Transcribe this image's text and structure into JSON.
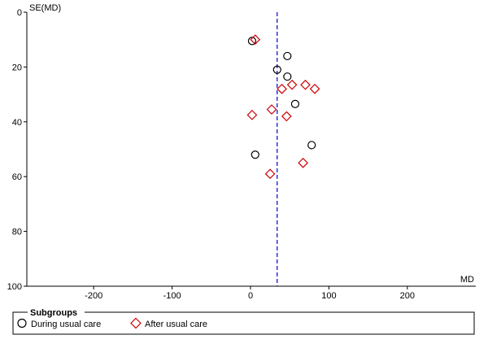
{
  "chart_data": {
    "type": "scatter",
    "title": "",
    "xlabel": "MD",
    "ylabel": "SE(MD)",
    "xlim": [
      -270,
      285
    ],
    "ylim": [
      0,
      100
    ],
    "y_inverted": true,
    "x_ticks": [
      -200,
      -100,
      0,
      100,
      200
    ],
    "y_ticks": [
      0,
      20,
      40,
      60,
      80,
      100
    ],
    "reference_line": {
      "x": 34,
      "style": "dashed",
      "color": "#0000cc"
    },
    "legend": {
      "title": "Subgroups",
      "placement": "bottom",
      "entries": [
        {
          "label": "During usual care",
          "marker": "circle",
          "color": "#000000"
        },
        {
          "label": "After usual care",
          "marker": "diamond",
          "color": "#cc0000"
        }
      ]
    },
    "series": [
      {
        "name": "During usual care",
        "marker": "circle",
        "color": "#000000",
        "points": [
          {
            "x": 2,
            "y": 10.5
          },
          {
            "x": 47,
            "y": 16
          },
          {
            "x": 34,
            "y": 21
          },
          {
            "x": 47,
            "y": 23.5
          },
          {
            "x": 57,
            "y": 33.5
          },
          {
            "x": 78,
            "y": 48.5
          },
          {
            "x": 6,
            "y": 52
          }
        ]
      },
      {
        "name": "After usual care",
        "marker": "diamond",
        "color": "#cc0000",
        "points": [
          {
            "x": 6,
            "y": 10
          },
          {
            "x": 40,
            "y": 28
          },
          {
            "x": 53,
            "y": 26.5
          },
          {
            "x": 70,
            "y": 26.5
          },
          {
            "x": 82,
            "y": 28
          },
          {
            "x": 27,
            "y": 35.5
          },
          {
            "x": 2,
            "y": 37.5
          },
          {
            "x": 46,
            "y": 38
          },
          {
            "x": 67,
            "y": 55
          },
          {
            "x": 25,
            "y": 59
          }
        ]
      }
    ]
  }
}
